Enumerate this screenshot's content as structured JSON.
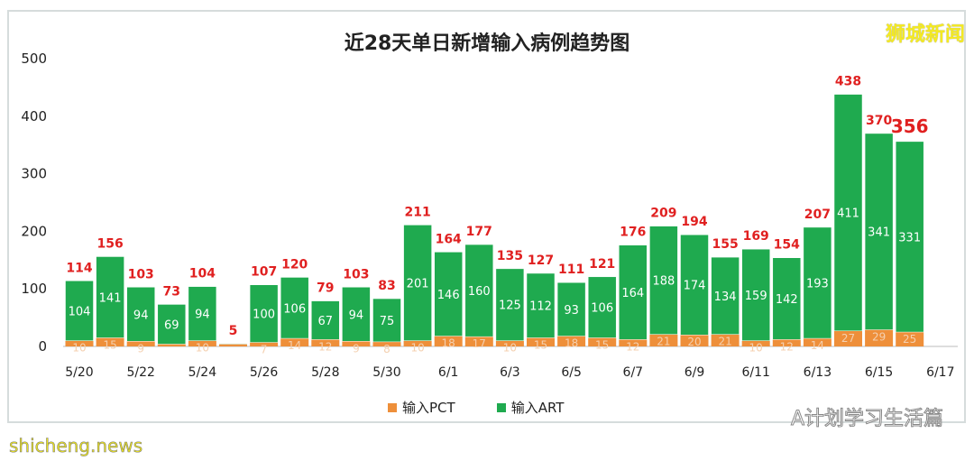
{
  "chart_data": {
    "type": "bar",
    "stacked": true,
    "title": "近28天单日新增输入病例趋势图",
    "categories": [
      "5/20",
      "5/21",
      "5/22",
      "5/23",
      "5/24",
      "5/25",
      "5/26",
      "5/27",
      "5/28",
      "5/29",
      "5/30",
      "5/31",
      "6/1",
      "6/2",
      "6/3",
      "6/4",
      "6/5",
      "6/6",
      "6/7",
      "6/8",
      "6/9",
      "6/10",
      "6/11",
      "6/12",
      "6/13",
      "6/14",
      "6/15",
      "6/16",
      "6/17"
    ],
    "xtick_labels": [
      "5/20",
      "5/22",
      "5/24",
      "5/26",
      "5/28",
      "5/30",
      "6/1",
      "6/3",
      "6/5",
      "6/7",
      "6/9",
      "6/11",
      "6/13",
      "6/15",
      "6/17"
    ],
    "series": [
      {
        "name": "输入PCT",
        "color": "#ee8f3a",
        "values": [
          10,
          15,
          9,
          4,
          10,
          4,
          7,
          14,
          12,
          9,
          8,
          10,
          18,
          17,
          10,
          15,
          18,
          15,
          12,
          21,
          20,
          21,
          10,
          12,
          14,
          27,
          29,
          25,
          null
        ]
      },
      {
        "name": "输入ART",
        "color": "#1faa4f",
        "values": [
          104,
          141,
          94,
          69,
          94,
          1,
          100,
          106,
          67,
          94,
          75,
          201,
          146,
          160,
          125,
          112,
          93,
          106,
          164,
          188,
          174,
          134,
          159,
          142,
          193,
          411,
          341,
          331,
          null
        ]
      }
    ],
    "totals": [
      114,
      156,
      103,
      73,
      104,
      5,
      107,
      120,
      79,
      103,
      83,
      211,
      164,
      177,
      135,
      127,
      111,
      121,
      176,
      209,
      194,
      155,
      169,
      154,
      207,
      438,
      370,
      356,
      null
    ],
    "total_label_color": "#e02020",
    "ylim": [
      0,
      500
    ],
    "yticks": [
      0,
      100,
      200,
      300,
      400,
      500
    ],
    "grid": false,
    "legend": "bottom"
  },
  "watermarks": {
    "top_right": "狮城新闻",
    "bottom_right": "A计划学习生活篇",
    "bottom_left": "shicheng.news"
  }
}
